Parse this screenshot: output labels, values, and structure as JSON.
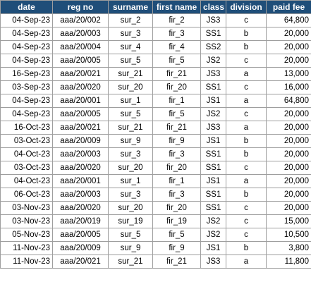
{
  "table": {
    "headers": [
      "date",
      "reg no",
      "surname",
      "first name",
      "class",
      "division",
      "paid fee"
    ],
    "rows": [
      [
        "04-Sep-23",
        "aaa/20/002",
        "sur_2",
        "fir_2",
        "JS3",
        "c",
        "64,800"
      ],
      [
        "04-Sep-23",
        "aaa/20/003",
        "sur_3",
        "fir_3",
        "SS1",
        "b",
        "20,000"
      ],
      [
        "04-Sep-23",
        "aaa/20/004",
        "sur_4",
        "fir_4",
        "SS2",
        "b",
        "20,000"
      ],
      [
        "04-Sep-23",
        "aaa/20/005",
        "sur_5",
        "fir_5",
        "JS2",
        "c",
        "20,000"
      ],
      [
        "16-Sep-23",
        "aaa/20/021",
        "sur_21",
        "fir_21",
        "JS3",
        "a",
        "13,000"
      ],
      [
        "03-Sep-23",
        "aaa/20/020",
        "sur_20",
        "fir_20",
        "SS1",
        "c",
        "16,000"
      ],
      [
        "04-Sep-23",
        "aaa/20/001",
        "sur_1",
        "fir_1",
        "JS1",
        "a",
        "64,800"
      ],
      [
        "04-Sep-23",
        "aaa/20/005",
        "sur_5",
        "fir_5",
        "JS2",
        "c",
        "20,000"
      ],
      [
        "16-Oct-23",
        "aaa/20/021",
        "sur_21",
        "fir_21",
        "JS3",
        "a",
        "20,000"
      ],
      [
        "03-Oct-23",
        "aaa/20/009",
        "sur_9",
        "fir_9",
        "JS1",
        "b",
        "20,000"
      ],
      [
        "04-Oct-23",
        "aaa/20/003",
        "sur_3",
        "fir_3",
        "SS1",
        "b",
        "20,000"
      ],
      [
        "03-Oct-23",
        "aaa/20/020",
        "sur_20",
        "fir_20",
        "SS1",
        "c",
        "20,000"
      ],
      [
        "04-Oct-23",
        "aaa/20/001",
        "sur_1",
        "fir_1",
        "JS1",
        "a",
        "20,000"
      ],
      [
        "06-Oct-23",
        "aaa/20/003",
        "sur_3",
        "fir_3",
        "SS1",
        "b",
        "20,000"
      ],
      [
        "03-Nov-23",
        "aaa/20/020",
        "sur_20",
        "fir_20",
        "SS1",
        "c",
        "20,000"
      ],
      [
        "03-Nov-23",
        "aaa/20/019",
        "sur_19",
        "fir_19",
        "JS2",
        "c",
        "15,000"
      ],
      [
        "05-Nov-23",
        "aaa/20/005",
        "sur_5",
        "fir_5",
        "JS2",
        "c",
        "10,500"
      ],
      [
        "11-Nov-23",
        "aaa/20/009",
        "sur_9",
        "fir_9",
        "JS1",
        "b",
        "3,800"
      ],
      [
        "11-Nov-23",
        "aaa/20/021",
        "sur_21",
        "fir_21",
        "JS3",
        "a",
        "11,800"
      ]
    ]
  }
}
